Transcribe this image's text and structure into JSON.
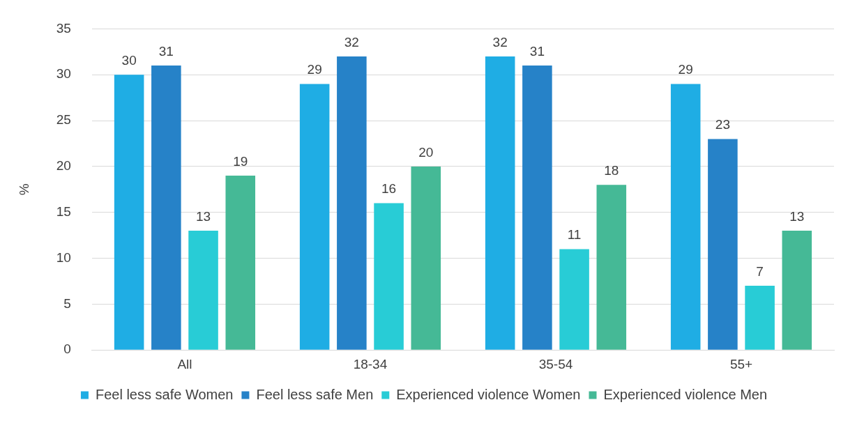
{
  "chart_data": {
    "type": "bar",
    "categories": [
      "All",
      "18-34",
      "35-54",
      "55+"
    ],
    "series": [
      {
        "name": "Feel less safe Women",
        "color": "#1fade4",
        "values": [
          30,
          29,
          32,
          29
        ]
      },
      {
        "name": "Feel less safe Men",
        "color": "#2682c8",
        "values": [
          31,
          32,
          31,
          23
        ]
      },
      {
        "name": "Experienced violence Women",
        "color": "#28ccd6",
        "values": [
          13,
          16,
          11,
          7
        ]
      },
      {
        "name": "Experienced violence Men",
        "color": "#45b996",
        "values": [
          19,
          20,
          18,
          13
        ]
      }
    ],
    "ylabel": "%",
    "ylim": [
      0,
      35
    ],
    "yticks": [
      0,
      5,
      10,
      15,
      20,
      25,
      30,
      35
    ],
    "grid": "y",
    "legend": "bottom",
    "data_labels": true
  }
}
